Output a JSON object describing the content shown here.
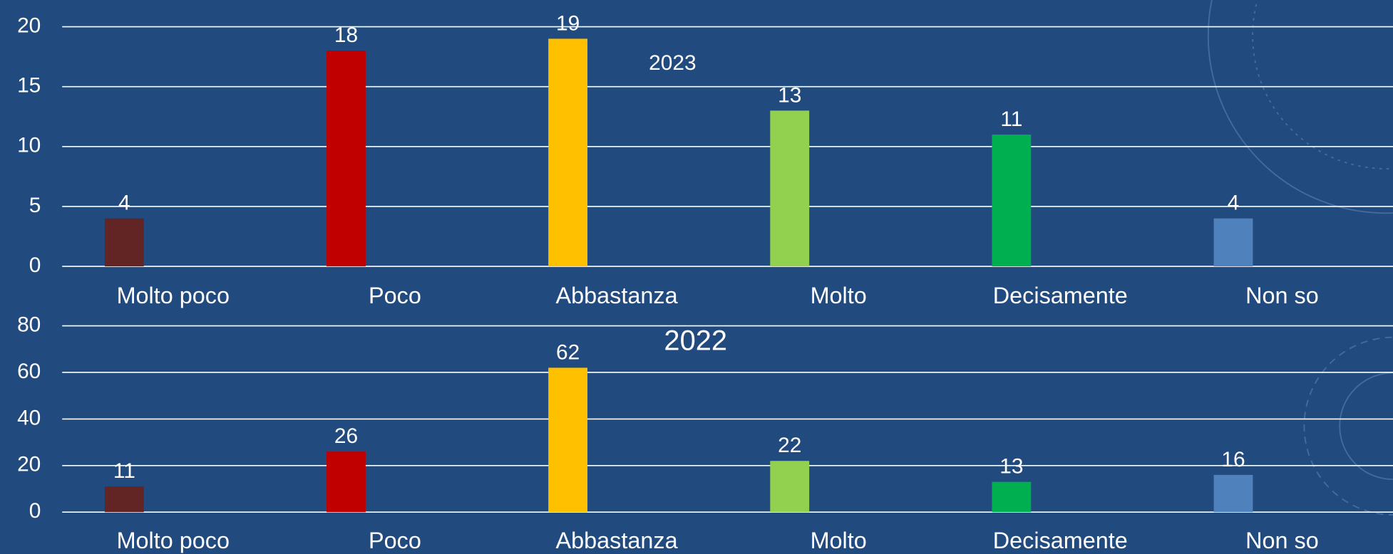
{
  "chart_data": [
    {
      "type": "bar",
      "title": "2023",
      "categories": [
        "Molto poco",
        "Poco",
        "Abbastanza",
        "Molto",
        "Decisamente",
        "Non so"
      ],
      "values": [
        4,
        18,
        19,
        13,
        11,
        4
      ],
      "colors": [
        "#632523",
        "#c00000",
        "#ffc000",
        "#92d050",
        "#00b050",
        "#4f81bd"
      ],
      "ylim": [
        0,
        20
      ],
      "yticks": [
        0,
        5,
        10,
        15,
        20
      ],
      "grid": true
    },
    {
      "type": "bar",
      "title": "2022",
      "categories": [
        "Molto poco",
        "Poco",
        "Abbastanza",
        "Molto",
        "Decisamente",
        "Non so"
      ],
      "values": [
        11,
        26,
        62,
        22,
        13,
        16
      ],
      "colors": [
        "#632523",
        "#c00000",
        "#ffc000",
        "#92d050",
        "#00b050",
        "#4f81bd"
      ],
      "ylim": [
        0,
        80
      ],
      "yticks": [
        0,
        20,
        40,
        60,
        80
      ],
      "grid": true
    }
  ]
}
